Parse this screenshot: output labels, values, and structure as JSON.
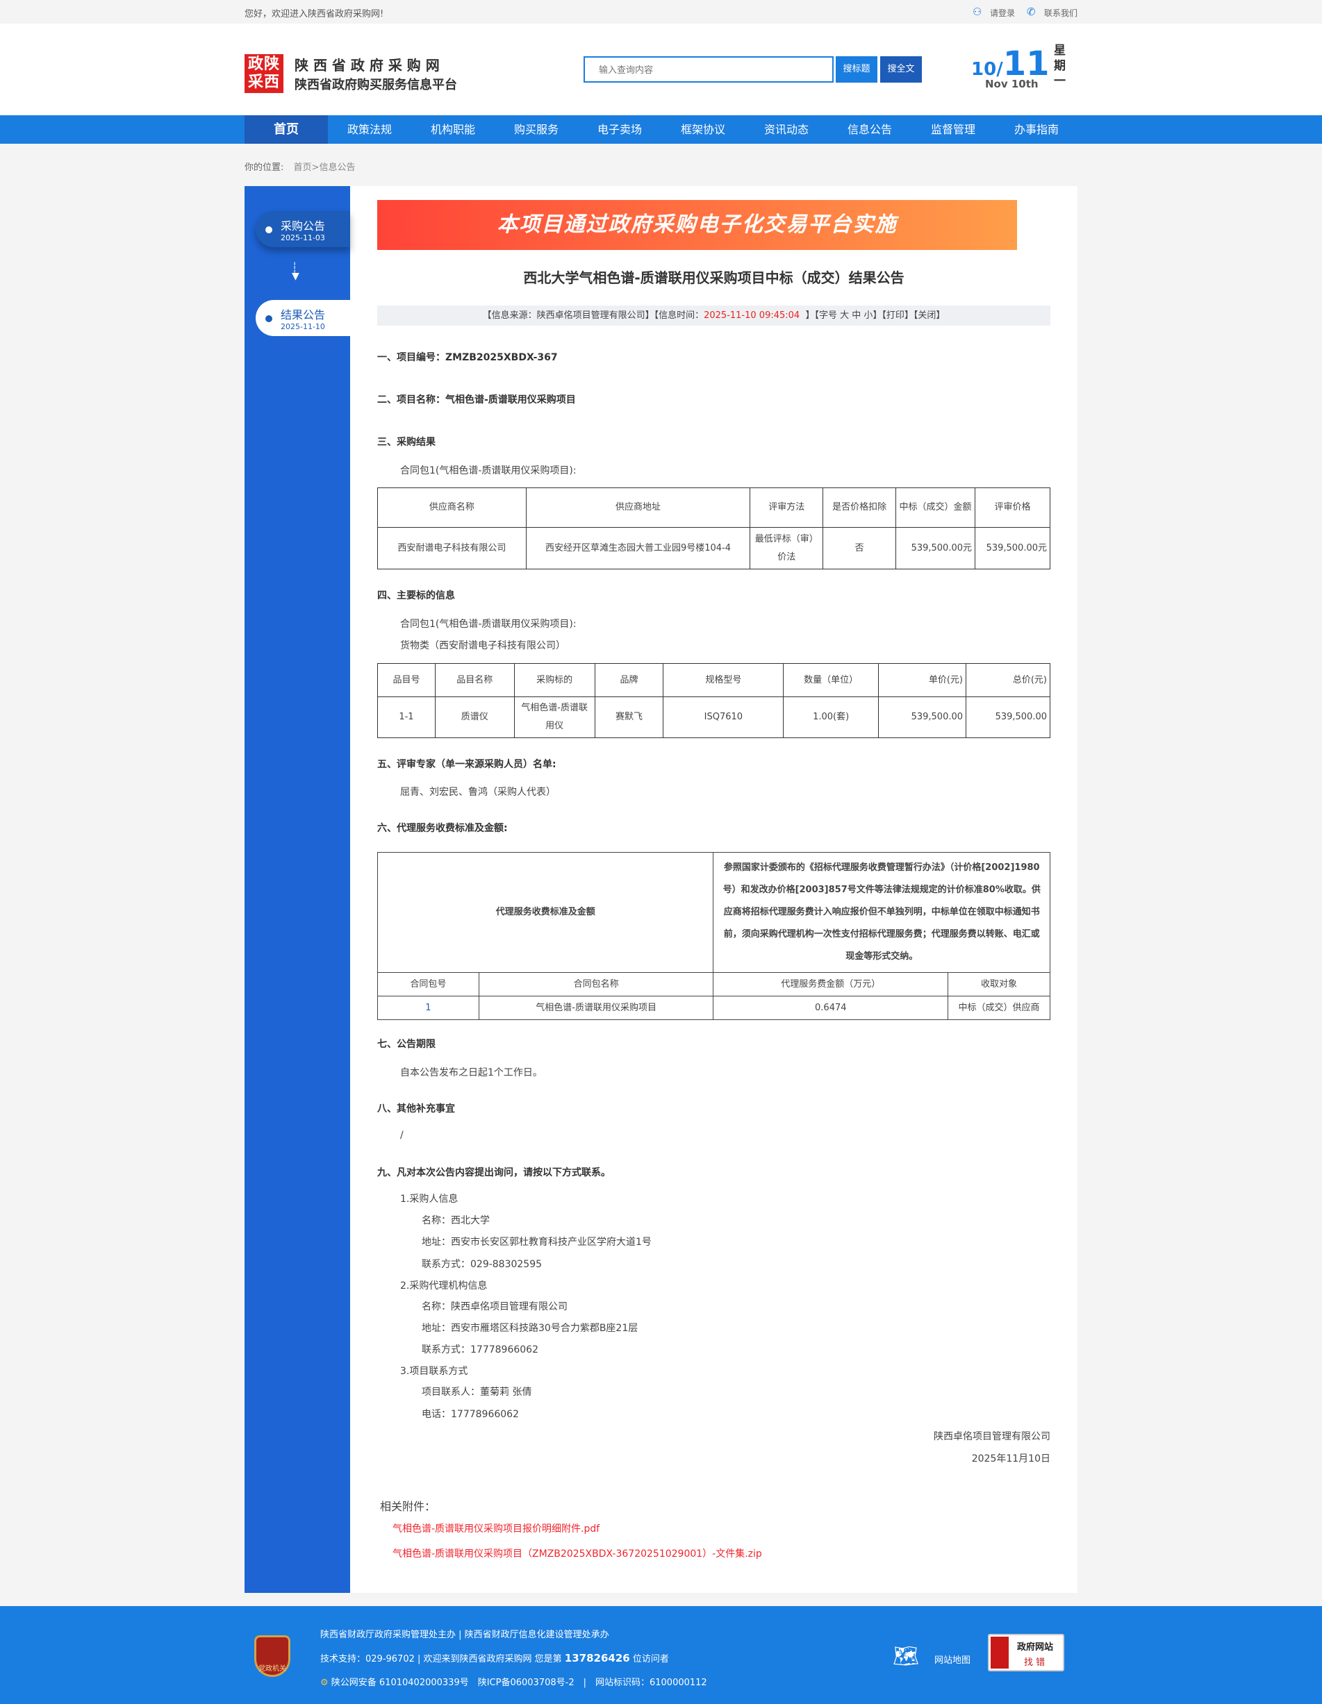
{
  "topbar": {
    "welcome": "您好，欢迎进入陕西省政府采购网!",
    "login": "请登录",
    "contact": "联系我们"
  },
  "header": {
    "logo_text": "政陕采西",
    "site_name": "陕 西 省 政 府 采 购 网",
    "site_sub": "陕西省政府购买服务信息平台",
    "search_placeholder": "输入查询内容",
    "search_title_btn": "搜标题",
    "search_full_btn": "搜全文",
    "date_month": "10",
    "date_day": "11",
    "date_en": "Nov 10th",
    "weekday": "星期一"
  },
  "nav": [
    "首页",
    "政策法规",
    "机构职能",
    "购买服务",
    "电子卖场",
    "框架协议",
    "资讯动态",
    "信息公告",
    "监督管理",
    "办事指南"
  ],
  "breadcrumb": {
    "label": "你的位置:",
    "home": "首页",
    "current": ">信息公告"
  },
  "sidebar": [
    {
      "label": "采购公告",
      "date": "2025-11-03"
    },
    {
      "label": "结果公告",
      "date": "2025-11-10"
    }
  ],
  "banner": "本项目通过政府采购电子化交易平台实施",
  "title": "西北大学气相色谱-质谱联用仪采购项目中标（成交）结果公告",
  "info": {
    "source": "【信息来源：陕西卓佲项目管理有限公司】",
    "time_label": "【信息时间：",
    "time": "2025-11-10 09:45:04",
    "time_end": "】",
    "font": "【字号 大 中 小】",
    "print": "【打印】",
    "close": "【关闭】"
  },
  "s1": "一、项目编号：ZMZB2025XBDX-367",
  "s2": "二、项目名称：气相色谱-质谱联用仪采购项目",
  "s3": "三、采购结果",
  "pkg": "合同包1(气相色谱-质谱联用仪采购项目):",
  "t1": {
    "headers": [
      "供应商名称",
      "供应商地址",
      "评审方法",
      "是否价格扣除",
      "中标（成交）金额",
      "评审价格"
    ],
    "row": [
      "西安耐谱电子科技有限公司",
      "西安经开区草滩生态园大普工业园9号楼104-4",
      "最低评标（审）价法",
      "否",
      "539,500.00元",
      "539,500.00元"
    ]
  },
  "s4": "四、主要标的信息",
  "goods": "货物类（西安耐谱电子科技有限公司）",
  "t2": {
    "headers": [
      "品目号",
      "品目名称",
      "采购标的",
      "品牌",
      "规格型号",
      "数量（单位）",
      "单价(元)",
      "总价(元)"
    ],
    "row": [
      "1-1",
      "质谱仪",
      "气相色谱-质谱联用仪",
      "赛默飞",
      "ISQ7610",
      "1.00(套)",
      "539,500.00",
      "539,500.00"
    ]
  },
  "s5": "五、评审专家（单一来源采购人员）名单:",
  "experts": "屈青、刘宏民、鲁鸿（采购人代表）",
  "s6": "六、代理服务收费标准及金额:",
  "t3": {
    "label": "代理服务收费标准及金额",
    "desc": "参照国家计委颁布的《招标代理服务收费管理暂行办法》（计价格[2002]1980号）和发改办价格[2003]857号文件等法律法规规定的计价标准80%收取。供应商将招标代理服务费计入响应报价但不单独列明，中标单位在领取中标通知书前，须向采购代理机构一次性支付招标代理服务费；代理服务费以转账、电汇或现金等形式交纳。",
    "headers": [
      "合同包号",
      "合同包名称",
      "代理服务费金额（万元）",
      "收取对象"
    ],
    "row": [
      "1",
      "气相色谱-质谱联用仪采购项目",
      "0.6474",
      "中标（成交）供应商"
    ]
  },
  "s7": "七、公告期限",
  "period": "自本公告发布之日起1个工作日。",
  "s8": "八、其他补充事宜",
  "other": "/",
  "s9": "九、凡对本次公告内容提出询问，请按以下方式联系。",
  "contacts": [
    {
      "t": "1.采购人信息",
      "i": 0
    },
    {
      "t": "名称：西北大学",
      "i": 1
    },
    {
      "t": "地址：西安市长安区郭杜教育科技产业区学府大道1号",
      "i": 1
    },
    {
      "t": "联系方式：029-88302595",
      "i": 1
    },
    {
      "t": "2.采购代理机构信息",
      "i": 0
    },
    {
      "t": "名称：陕西卓佲项目管理有限公司",
      "i": 1
    },
    {
      "t": "地址：西安市雁塔区科技路30号合力紫郡B座21层",
      "i": 1
    },
    {
      "t": "联系方式：17778966062",
      "i": 1
    },
    {
      "t": "3.项目联系方式",
      "i": 0
    },
    {
      "t": "项目联系人：董菊莉 张倩",
      "i": 1
    },
    {
      "t": "电话：17778966062",
      "i": 1
    }
  ],
  "sign_org": "陕西卓佲项目管理有限公司",
  "sign_date": "2025年11月10日",
  "attach_label": "相关附件：",
  "attachments": [
    "气相色谱-质谱联用仪采购项目报价明细附件.pdf",
    "气相色谱-质谱联用仪采购项目（ZMZB2025XBDX-36720251029001）-文件集.zip"
  ],
  "footer": {
    "badge": "党政机关",
    "line1": "陕西省财政厅政府采购管理处主办 | 陕西省财政厅信息化建设管理处承办",
    "line2a": "技术支持：029-96702 | 欢迎来到陕西省政府采购网 您是第",
    "visits": "137826426",
    "line2b": "位访问者",
    "line3": "陕公网安备 61010402000339号　陕ICP备06003708号-2　|　网站标识码：6100000112",
    "sitemap": "网站地图",
    "gov1": "政府网站",
    "gov2": "找 错"
  },
  "colors": {
    "blue": "#1a7de0",
    "nav_active": "#1d5cb8",
    "sidebar": "#1e64d4",
    "red": "#e8231e"
  }
}
